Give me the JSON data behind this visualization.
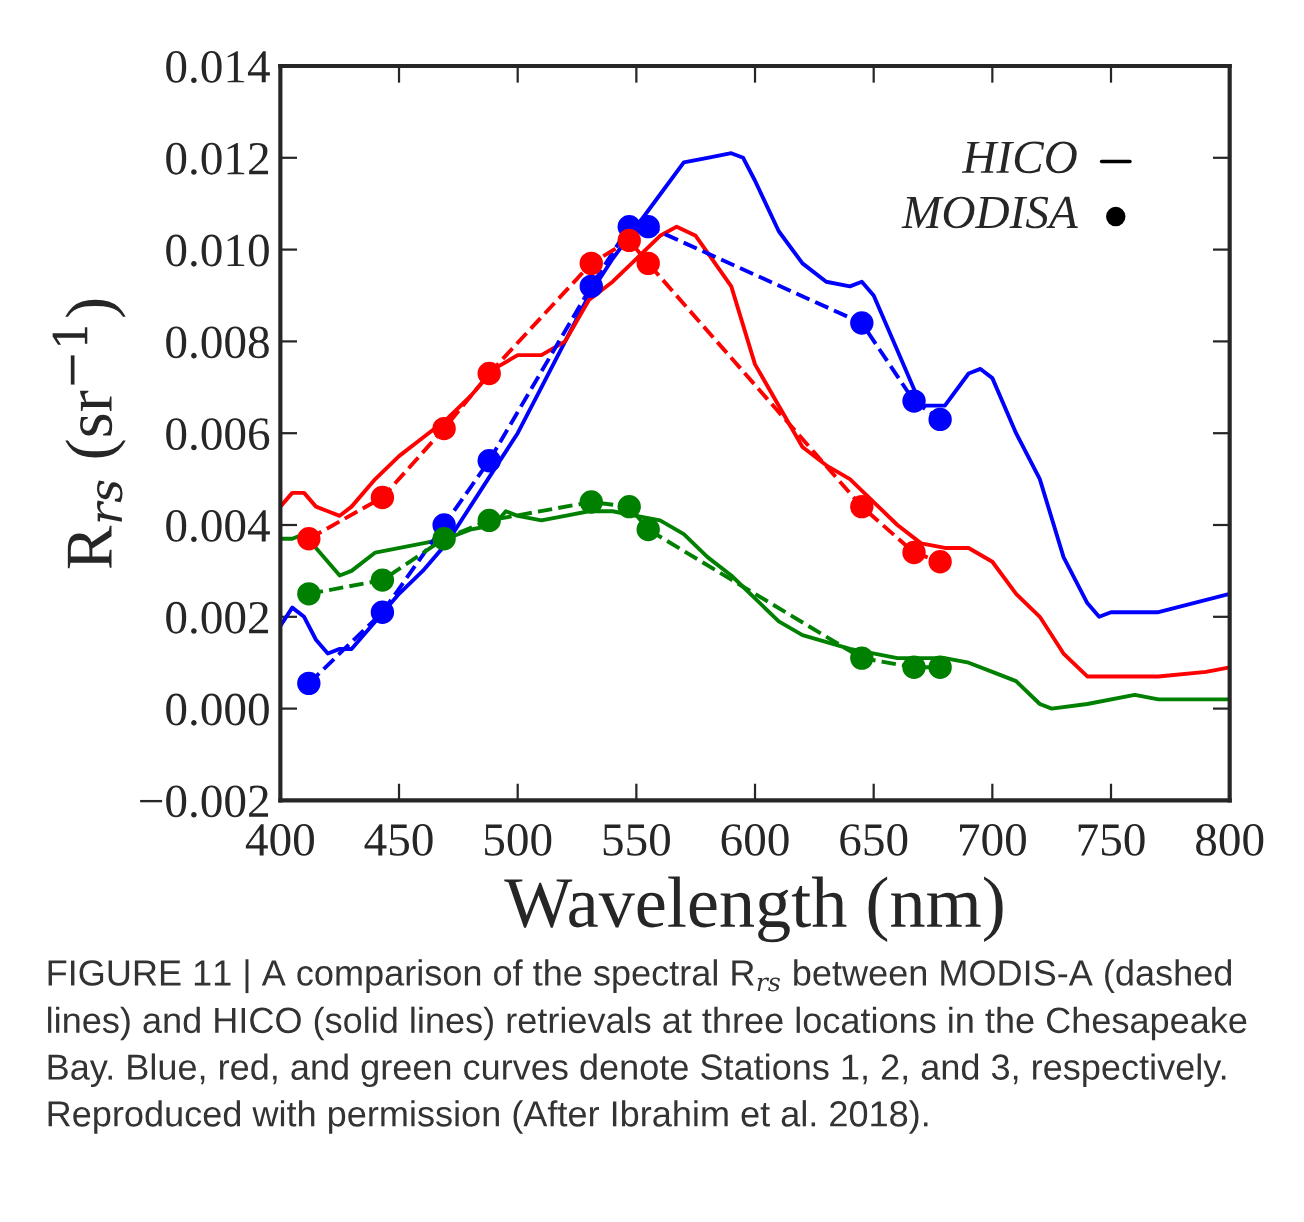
{
  "chart_data": {
    "type": "line",
    "xlabel": "Wavelength (nm)",
    "ylabel": "R$_{rs}$ (sr$^{−1}$)",
    "xlim": [
      400,
      800
    ],
    "xticks": [
      400,
      450,
      500,
      550,
      600,
      650,
      700,
      750,
      800
    ],
    "ylim": [
      -0.002,
      0.014
    ],
    "yticks": [
      {
        "value": -0.002,
        "label": "−0.002"
      },
      {
        "value": 0.0,
        "label": "0.000"
      },
      {
        "value": 0.002,
        "label": "0.002"
      },
      {
        "value": 0.004,
        "label": "0.004"
      },
      {
        "value": 0.006,
        "label": "0.006"
      },
      {
        "value": 0.008,
        "label": "0.008"
      },
      {
        "value": 0.01,
        "label": "0.010"
      },
      {
        "value": 0.012,
        "label": "0.012"
      },
      {
        "value": 0.014,
        "label": "0.014"
      }
    ],
    "grid": false,
    "series": [
      {
        "color": "#0000ff",
        "line_style": "solid",
        "marker": "none",
        "x": [
          400,
          405,
          410,
          415,
          420,
          425,
          430,
          440,
          450,
          460,
          470,
          480,
          490,
          500,
          510,
          520,
          530,
          540,
          550,
          560,
          570,
          580,
          590,
          595,
          600,
          610,
          620,
          630,
          640,
          645,
          650,
          660,
          670,
          680,
          690,
          695,
          700,
          710,
          720,
          730,
          740,
          745,
          750,
          770,
          800
        ],
        "values": [
          0.0018,
          0.0022,
          0.002,
          0.0015,
          0.0012,
          0.0013,
          0.0013,
          0.0019,
          0.0025,
          0.003,
          0.0036,
          0.0044,
          0.0052,
          0.006,
          0.007,
          0.008,
          0.009,
          0.0098,
          0.0105,
          0.0112,
          0.0119,
          0.012,
          0.0121,
          0.012,
          0.0115,
          0.0104,
          0.0097,
          0.0093,
          0.0092,
          0.0093,
          0.009,
          0.0078,
          0.0066,
          0.0066,
          0.0073,
          0.0074,
          0.0072,
          0.006,
          0.005,
          0.0033,
          0.0023,
          0.002,
          0.0021,
          0.0021,
          0.0025
        ]
      },
      {
        "color": "#ff0000",
        "line_style": "solid",
        "marker": "none",
        "x": [
          400,
          405,
          410,
          415,
          420,
          425,
          430,
          440,
          450,
          460,
          470,
          480,
          490,
          500,
          510,
          520,
          530,
          540,
          550,
          560,
          567,
          575,
          590,
          600,
          610,
          620,
          630,
          640,
          650,
          660,
          670,
          680,
          690,
          700,
          710,
          720,
          730,
          740,
          750,
          770,
          790,
          800
        ],
        "values": [
          0.0044,
          0.0047,
          0.0047,
          0.0044,
          0.0043,
          0.0042,
          0.0044,
          0.005,
          0.0055,
          0.0059,
          0.0063,
          0.0068,
          0.0074,
          0.0077,
          0.0077,
          0.008,
          0.0089,
          0.0093,
          0.0098,
          0.0103,
          0.0105,
          0.0103,
          0.0092,
          0.0075,
          0.0066,
          0.0057,
          0.0053,
          0.005,
          0.0045,
          0.004,
          0.0036,
          0.0035,
          0.0035,
          0.0032,
          0.0025,
          0.002,
          0.0012,
          0.0007,
          0.0007,
          0.0007,
          0.0008,
          0.0009
        ]
      },
      {
        "color": "#008000",
        "line_style": "solid",
        "marker": "none",
        "x": [
          400,
          405,
          410,
          420,
          425,
          430,
          440,
          460,
          470,
          480,
          490,
          495,
          500,
          510,
          520,
          530,
          540,
          550,
          560,
          570,
          580,
          590,
          600,
          610,
          620,
          640,
          660,
          680,
          690,
          700,
          710,
          720,
          725,
          740,
          760,
          770,
          800
        ],
        "values": [
          0.0037,
          0.0037,
          0.0038,
          0.0032,
          0.0029,
          0.003,
          0.0034,
          0.0036,
          0.0037,
          0.0039,
          0.004,
          0.0043,
          0.0042,
          0.0041,
          0.0042,
          0.0043,
          0.0043,
          0.0042,
          0.0041,
          0.0038,
          0.0033,
          0.0029,
          0.0024,
          0.0019,
          0.0016,
          0.0013,
          0.0011,
          0.0011,
          0.001,
          0.0008,
          0.0006,
          0.0001,
          0.0,
          0.0001,
          0.0003,
          0.0002,
          0.0002
        ]
      },
      {
        "color": "#0000ff",
        "line_style": "dashed",
        "marker": "circle",
        "x": [
          412,
          443,
          469,
          488,
          531,
          547,
          555,
          645,
          667,
          678
        ],
        "values": [
          0.00055,
          0.0021,
          0.004,
          0.0054,
          0.0092,
          0.0105,
          0.0105,
          0.0084,
          0.0067,
          0.0063
        ]
      },
      {
        "color": "#ff0000",
        "line_style": "dashed",
        "marker": "circle",
        "x": [
          412,
          443,
          469,
          488,
          531,
          547,
          555,
          645,
          667,
          678
        ],
        "values": [
          0.0037,
          0.0046,
          0.0061,
          0.0073,
          0.0097,
          0.0102,
          0.0097,
          0.0044,
          0.0034,
          0.0032
        ]
      },
      {
        "color": "#008000",
        "line_style": "dashed",
        "marker": "circle",
        "x": [
          412,
          443,
          469,
          488,
          531,
          547,
          555,
          645,
          667,
          678
        ],
        "values": [
          0.0025,
          0.0028,
          0.0037,
          0.0041,
          0.0045,
          0.0044,
          0.0039,
          0.0011,
          0.0009,
          0.0009
        ]
      }
    ],
    "annotations": [
      "HICO",
      "MODISA",
      "FIGURE 11 | A comparison of the spectral R$_{rs}$ between MODIS-A (dashed lines) and HICO (solid lines) retrievals at three locations in the Chesapeake Bay. Blue, red, and green curves denote Stations 1, 2, and 3, respectively. Reproduced with permission (After Ibrahim et al. 2018)."
    ]
  }
}
